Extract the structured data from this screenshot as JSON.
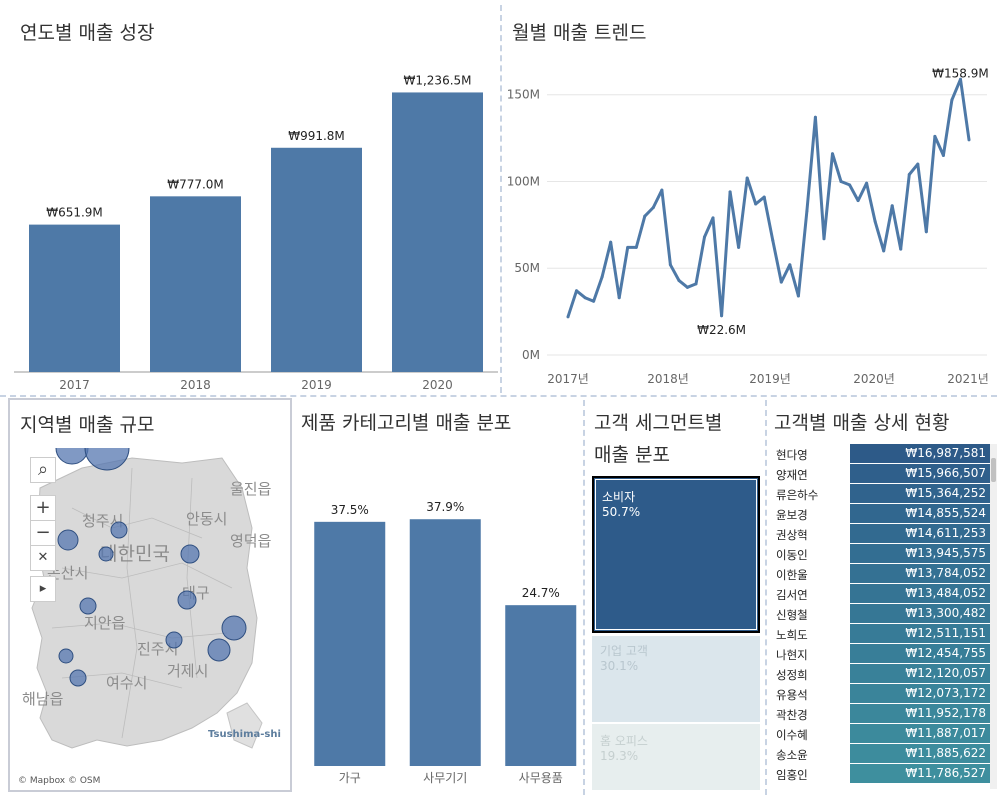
{
  "colors": {
    "bar": "#4e79a7",
    "line": "#4e79a7",
    "grid": "#e6e6e6",
    "axis": "#666666"
  },
  "yearly": {
    "title": "연도별 매출 성장",
    "chart_data": {
      "type": "bar",
      "categories": [
        "2017",
        "2018",
        "2019",
        "2020"
      ],
      "values": [
        651.9,
        777.0,
        991.8,
        1236.5
      ],
      "labels": [
        "₩651.9M",
        "₩777.0M",
        "₩991.8M",
        "₩1,236.5M"
      ],
      "ylim": [
        0,
        1380
      ]
    }
  },
  "monthly": {
    "title": "월별 매출 트렌드",
    "chart_data": {
      "type": "line",
      "y_ticks": [
        "0M",
        "50M",
        "100M",
        "150M"
      ],
      "y_tick_values": [
        0,
        50,
        100,
        150
      ],
      "x_ticks": [
        "2017년",
        "2018년",
        "2019년",
        "2020년",
        "2021년"
      ],
      "ylim": [
        0,
        170
      ],
      "values": [
        22,
        37,
        33,
        31,
        45,
        65,
        33,
        62,
        62,
        80,
        85,
        95,
        52,
        43,
        39,
        41,
        68,
        79,
        22.6,
        94,
        62,
        102,
        87,
        91,
        66,
        42,
        52,
        34,
        83,
        137,
        67,
        116,
        100,
        98,
        89,
        99,
        77,
        60,
        86,
        61,
        104,
        110,
        71,
        126,
        115,
        147,
        158.9,
        124
      ],
      "annotations": [
        {
          "index": 18,
          "label": "₩22.6M"
        },
        {
          "index": 46,
          "label": "₩158.9M"
        }
      ]
    }
  },
  "region": {
    "title": "지역별 매출 규모",
    "map_labels": [
      "울진읍",
      "영덕읍",
      "안동시",
      "대한민국",
      "청주시",
      "논산시",
      "지안읍",
      "대구",
      "진주시",
      "거제시",
      "여수시",
      "해남읍",
      "Tsushima-shi"
    ],
    "attribution": "© Mapbox © OSM",
    "controls": {
      "search": "⌕",
      "zoom_in": "+",
      "zoom_out": "−",
      "pin": "✕",
      "expand": "▸"
    }
  },
  "category": {
    "title": "제품 카테고리별 매출 분포",
    "chart_data": {
      "type": "bar",
      "categories": [
        "가구",
        "사무기기",
        "사무용품"
      ],
      "values": [
        37.5,
        37.9,
        24.7
      ],
      "labels": [
        "37.5%",
        "37.9%",
        "24.7%"
      ],
      "ylim": [
        0,
        45
      ]
    }
  },
  "segment": {
    "title_line1": "고객 세그먼트별",
    "title_line2": "매출 분포",
    "cells": [
      {
        "name": "소비자",
        "pct": "50.7%",
        "color": "#2e5b8a"
      },
      {
        "name": "기업 고객",
        "pct": "30.1%",
        "color": "#dbe6ec"
      },
      {
        "name": "홈 오피스",
        "pct": "19.3%",
        "color": "#e7eeee"
      }
    ]
  },
  "customers": {
    "title": "고객별 매출 상세 현황",
    "rows": [
      {
        "name": "현다영",
        "value": "₩16,987,581",
        "color": "#2d5a88"
      },
      {
        "name": "양재연",
        "value": "₩15,966,507",
        "color": "#2f5f8b"
      },
      {
        "name": "류은하수",
        "value": "₩15,364,252",
        "color": "#30638d"
      },
      {
        "name": "윤보경",
        "value": "₩14,855,524",
        "color": "#31678f"
      },
      {
        "name": "권상혁",
        "value": "₩14,611,253",
        "color": "#326a90"
      },
      {
        "name": "이동인",
        "value": "₩13,945,575",
        "color": "#336e92"
      },
      {
        "name": "이한울",
        "value": "₩13,784,052",
        "color": "#347193"
      },
      {
        "name": "김서연",
        "value": "₩13,484,052",
        "color": "#357494"
      },
      {
        "name": "신형철",
        "value": "₩13,300,482",
        "color": "#367795"
      },
      {
        "name": "노희도",
        "value": "₩12,511,151",
        "color": "#377b97"
      },
      {
        "name": "나현지",
        "value": "₩12,454,755",
        "color": "#387e98"
      },
      {
        "name": "성정희",
        "value": "₩12,120,057",
        "color": "#398199"
      },
      {
        "name": "유용석",
        "value": "₩12,073,172",
        "color": "#3a849a"
      },
      {
        "name": "곽찬경",
        "value": "₩11,952,178",
        "color": "#3b879b"
      },
      {
        "name": "이수혜",
        "value": "₩11,887,017",
        "color": "#3c8a9c"
      },
      {
        "name": "송소윤",
        "value": "₩11,885,622",
        "color": "#3d8c9d"
      },
      {
        "name": "임홍인",
        "value": "₩11,786,527",
        "color": "#3e8f9e"
      }
    ]
  }
}
